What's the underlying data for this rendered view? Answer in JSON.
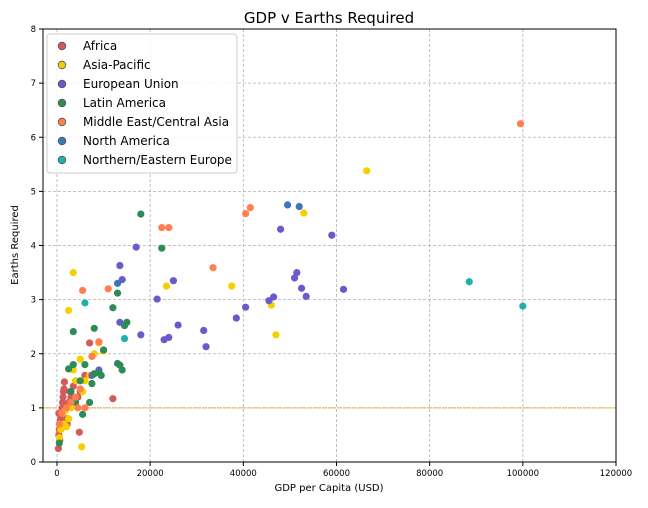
{
  "chart_data": {
    "type": "scatter",
    "title": "GDP v Earths Required",
    "xlabel": "GDP per Capita (USD)",
    "ylabel": "Earths Required",
    "xlim": [
      -3000,
      120000
    ],
    "ylim": [
      0,
      8
    ],
    "xticks": [
      0,
      20000,
      40000,
      60000,
      80000,
      100000,
      120000
    ],
    "yticks": [
      0,
      1,
      2,
      3,
      4,
      5,
      6,
      7,
      8
    ],
    "grid": true,
    "reference_line": {
      "y": 1,
      "color": "#e0a030"
    },
    "legend": {
      "placement": "top-left"
    },
    "series": [
      {
        "name": "Africa",
        "color": "#d35a5a",
        "x": [
          300,
          400,
          500,
          600,
          700,
          800,
          900,
          1000,
          1100,
          1200,
          1300,
          1400,
          1500,
          1600,
          1800,
          2000,
          2200,
          2500,
          2800,
          3000,
          3500,
          4000,
          4500,
          5000,
          6000,
          7000,
          400,
          600,
          800,
          1500,
          4800,
          12000
        ],
        "y": [
          0.25,
          0.5,
          0.6,
          0.7,
          0.75,
          0.8,
          0.85,
          0.9,
          1.0,
          1.1,
          1.2,
          1.3,
          1.35,
          1.48,
          1.0,
          0.8,
          0.7,
          1.1,
          1.3,
          1.2,
          1.4,
          1.5,
          1.2,
          1.3,
          1.6,
          2.2,
          0.9,
          0.4,
          0.6,
          0.8,
          0.55,
          1.17
        ]
      },
      {
        "name": "Asia-Pacific",
        "color": "#f5d000",
        "x": [
          500,
          800,
          1200,
          1500,
          2000,
          2500,
          3000,
          3500,
          4000,
          5000,
          5500,
          6000,
          7000,
          8000,
          9000,
          10000,
          2500,
          3500,
          5300,
          23500,
          37500,
          46000,
          47000,
          53000,
          66500,
          1800
        ],
        "y": [
          0.45,
          0.6,
          0.9,
          0.7,
          0.65,
          0.8,
          1.0,
          1.7,
          1.5,
          1.9,
          1.3,
          1.5,
          1.6,
          2.0,
          2.2,
          2.05,
          2.8,
          3.5,
          0.28,
          3.25,
          3.25,
          2.9,
          2.35,
          4.6,
          5.38,
          0.95
        ]
      },
      {
        "name": "European Union",
        "color": "#6a5acd",
        "x": [
          7500,
          9000,
          13500,
          14000,
          17000,
          18000,
          21500,
          23000,
          24000,
          25000,
          26000,
          31500,
          32000,
          38500,
          40500,
          45500,
          46500,
          48000,
          51000,
          51500,
          52500,
          53500,
          59000,
          61500,
          13500
        ],
        "y": [
          1.6,
          1.7,
          3.63,
          3.37,
          3.97,
          2.35,
          3.01,
          2.26,
          2.3,
          3.35,
          2.53,
          2.43,
          2.13,
          2.66,
          2.86,
          2.98,
          3.05,
          4.3,
          3.4,
          3.5,
          3.21,
          3.06,
          4.19,
          3.19,
          2.58
        ]
      },
      {
        "name": "Latin America",
        "color": "#2e8b57",
        "x": [
          500,
          2500,
          3000,
          3500,
          4000,
          5000,
          6000,
          7000,
          7500,
          8000,
          9000,
          9500,
          10000,
          12000,
          13000,
          13500,
          14000,
          14500,
          15000,
          13000,
          18000,
          22500,
          5500,
          8000,
          3500
        ],
        "y": [
          0.35,
          1.72,
          1.3,
          1.8,
          1.1,
          1.5,
          1.8,
          1.1,
          1.45,
          2.47,
          1.65,
          1.6,
          2.07,
          2.85,
          3.12,
          1.79,
          1.7,
          2.52,
          2.58,
          1.82,
          4.58,
          3.95,
          0.88,
          1.63,
          2.41
        ]
      },
      {
        "name": "Middle East/Central Asia",
        "color": "#ff7f50",
        "x": [
          500,
          1000,
          2000,
          3000,
          4000,
          5000,
          5500,
          6000,
          7500,
          9000,
          11000,
          22500,
          24000,
          33500,
          40500,
          41500,
          99500,
          4500
        ],
        "y": [
          0.7,
          0.9,
          1.0,
          1.1,
          1.2,
          1.35,
          3.17,
          1.0,
          1.95,
          2.22,
          3.2,
          4.33,
          4.33,
          3.59,
          4.59,
          4.7,
          6.25,
          1.0
        ]
      },
      {
        "name": "North America",
        "color": "#3a78b8",
        "x": [
          49500,
          52000,
          13000
        ],
        "y": [
          4.75,
          4.72,
          3.3
        ]
      },
      {
        "name": "Northern/Eastern Europe",
        "color": "#20b2aa",
        "x": [
          6000,
          14500,
          88500,
          100000
        ],
        "y": [
          2.94,
          2.28,
          3.33,
          2.88
        ]
      }
    ]
  }
}
